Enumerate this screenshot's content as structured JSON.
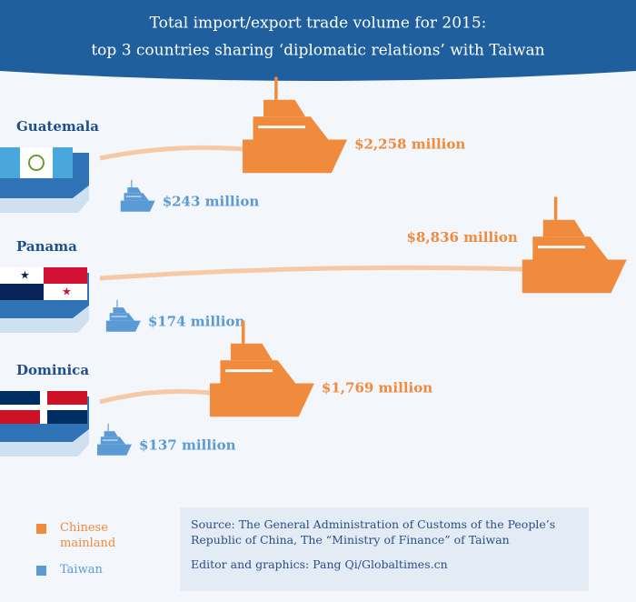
{
  "chart_data": {
    "type": "ship",
    "title": "Total import/export trade volume for 2015:",
    "subtitle": "top 3 countries sharing ‘diplomatic relations’ with Taiwan",
    "categories": [
      "Guatemala",
      "Panama",
      "Dominica"
    ],
    "series": [
      {
        "name": "Chinese mainland",
        "color": "#f08a3c",
        "values": [
          2258,
          8836,
          1769
        ],
        "value_labels": [
          "$2,258 million",
          "$8,836 million",
          "$1,769 million"
        ]
      },
      {
        "name": "Taiwan",
        "color": "#5b9bd5",
        "values": [
          243,
          174,
          137
        ],
        "value_labels": [
          "$243 million",
          "$174 million",
          "$137 million"
        ]
      }
    ],
    "source": "Source: The General Administration of Customs of the People’s Republic of China, The “Ministry of Finance” of Taiwan",
    "credit": "Editor and graphics: Pang Qi/Globaltimes.cn"
  }
}
